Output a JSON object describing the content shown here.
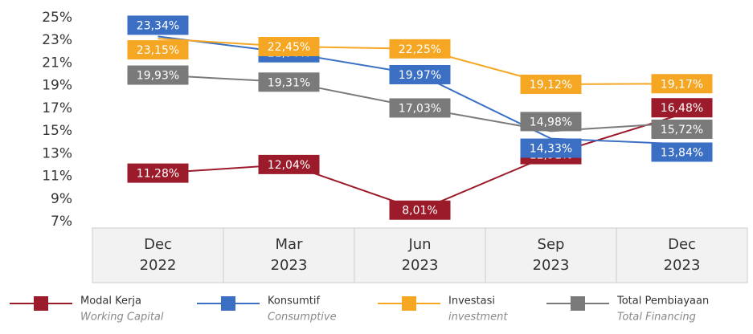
{
  "chart_data": {
    "type": "line",
    "categories": [
      "Dec 2022",
      "Mar 2023",
      "Jun 2023",
      "Sep 2023",
      "Dec 2023"
    ],
    "ylim": [
      7,
      25
    ],
    "yticks": [
      {
        "value": 7,
        "label": "7%"
      },
      {
        "value": 9,
        "label": "9%"
      },
      {
        "value": 11,
        "label": "11%"
      },
      {
        "value": 13,
        "label": "13%"
      },
      {
        "value": 15,
        "label": "15%"
      },
      {
        "value": 17,
        "label": "17%"
      },
      {
        "value": 19,
        "label": "19%"
      },
      {
        "value": 21,
        "label": "21%"
      },
      {
        "value": 23,
        "label": "23%"
      },
      {
        "value": 25,
        "label": "25%"
      }
    ],
    "series": [
      {
        "name": "Modal Kerja",
        "subname": "Working Capital",
        "color": "#9b1b2a",
        "values": [
          11.28,
          12.04,
          8.01,
          12.91,
          16.48
        ],
        "value_labels": [
          "11,28%",
          "12,04%",
          "8,01%",
          "12,91%",
          "16,48%"
        ]
      },
      {
        "name": "Konsumtif",
        "subname": "Consumptive",
        "color": "#3a6fc4",
        "values": [
          23.34,
          21.9,
          19.97,
          14.33,
          13.84
        ],
        "value_labels": [
          "23,34%",
          "21,90%",
          "19,97%",
          "14,33%",
          "13,84%"
        ]
      },
      {
        "name": "Investasi",
        "subname": "investment",
        "color": "#f5a623",
        "values": [
          23.15,
          22.45,
          22.25,
          19.12,
          19.17
        ],
        "value_labels": [
          "23,15%",
          "22,45%",
          "22,25%",
          "19,12%",
          "19,17%"
        ]
      },
      {
        "name": "Total Pembiayaan",
        "subname": "Total Financing",
        "color": "#7a7a7a",
        "values": [
          19.93,
          19.31,
          17.03,
          14.98,
          15.72
        ],
        "value_labels": [
          "19,93%",
          "19,31%",
          "17,03%",
          "14,98%",
          "15,72%"
        ]
      }
    ]
  }
}
